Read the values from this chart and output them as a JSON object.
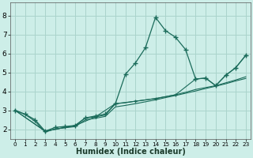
{
  "xlabel": "Humidex (Indice chaleur)",
  "bg_color": "#cdeee8",
  "grid_color": "#aad4cc",
  "line_color": "#1a6b5a",
  "xlim": [
    -0.5,
    23.5
  ],
  "ylim": [
    1.5,
    8.7
  ],
  "xticks": [
    0,
    1,
    2,
    3,
    4,
    5,
    6,
    7,
    8,
    9,
    10,
    11,
    12,
    13,
    14,
    15,
    16,
    17,
    18,
    19,
    20,
    21,
    22,
    23
  ],
  "yticks": [
    2,
    3,
    4,
    5,
    6,
    7,
    8
  ],
  "curve1_x": [
    0,
    1,
    2,
    3,
    4,
    5,
    6,
    7,
    8,
    9,
    10,
    11,
    12,
    13,
    14,
    15,
    16,
    17,
    18,
    19,
    20,
    21,
    22,
    23
  ],
  "curve1_y": [
    3.0,
    2.8,
    2.5,
    1.9,
    2.1,
    2.15,
    2.2,
    2.6,
    2.7,
    2.8,
    3.35,
    4.9,
    5.5,
    6.3,
    7.9,
    7.2,
    6.85,
    6.2,
    4.65,
    4.7,
    4.3,
    4.85,
    5.25,
    5.9
  ],
  "curve2_x": [
    0,
    3,
    6,
    7,
    8,
    9,
    10,
    11,
    12,
    13,
    14,
    15,
    16,
    17,
    18,
    19,
    20,
    21,
    22,
    23
  ],
  "curve2_y": [
    3.0,
    1.9,
    2.2,
    2.6,
    2.65,
    2.75,
    3.35,
    3.4,
    3.48,
    3.55,
    3.62,
    3.72,
    3.82,
    3.95,
    4.1,
    4.2,
    4.3,
    4.45,
    4.6,
    4.77
  ],
  "curve3_x": [
    0,
    1,
    2,
    3,
    4,
    5,
    6,
    7,
    8,
    9,
    10,
    11,
    12,
    13,
    14,
    15,
    16,
    17,
    18,
    19,
    20,
    21,
    22,
    23
  ],
  "curve3_y": [
    3.0,
    2.78,
    2.42,
    1.85,
    2.02,
    2.08,
    2.14,
    2.5,
    2.58,
    2.68,
    3.18,
    3.26,
    3.35,
    3.45,
    3.55,
    3.67,
    3.78,
    3.9,
    4.02,
    4.15,
    4.27,
    4.4,
    4.55,
    4.68
  ],
  "curve4_x": [
    0,
    3,
    6,
    8,
    10,
    12,
    14,
    16,
    18,
    19,
    20,
    21,
    22,
    23
  ],
  "curve4_y": [
    3.0,
    1.9,
    2.2,
    2.65,
    3.35,
    3.48,
    3.62,
    3.82,
    4.65,
    4.7,
    4.3,
    4.85,
    5.25,
    5.9
  ]
}
